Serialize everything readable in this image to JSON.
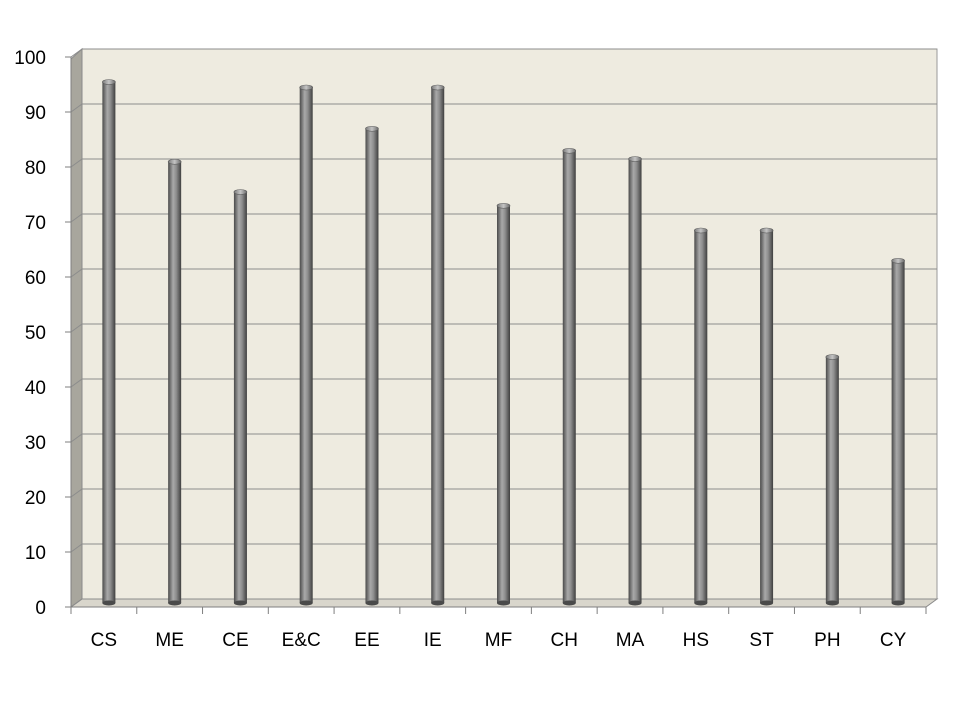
{
  "chart_data": {
    "type": "bar",
    "style": "3d-cylinder",
    "categories": [
      "CS",
      "ME",
      "CE",
      "E&C",
      "EE",
      "IE",
      "MF",
      "CH",
      "MA",
      "HS",
      "ST",
      "PH",
      "CY"
    ],
    "values": [
      94,
      79.5,
      74,
      93,
      85.5,
      93,
      71.5,
      81.5,
      80,
      67,
      67,
      44,
      61.5
    ],
    "yticks": [
      0,
      10,
      20,
      30,
      40,
      50,
      60,
      70,
      80,
      90,
      100
    ],
    "ylim": [
      0,
      100
    ],
    "grid": true,
    "legend": "none",
    "colors": {
      "plot_background": "#eeebe0",
      "side_wall": "#a8a69d",
      "gridline": "#8c8c8c",
      "bar_dark": "#4a4a4a",
      "bar_light": "#a9a9a9"
    }
  }
}
